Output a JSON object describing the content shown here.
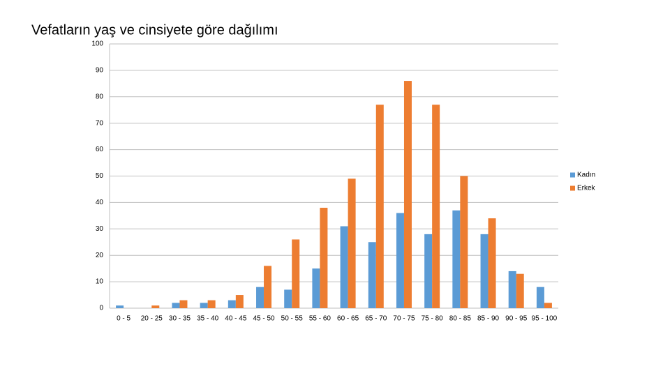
{
  "chart_data": {
    "type": "bar",
    "title": "Vefatların yaş ve cinsiyete göre dağılımı",
    "categories": [
      "0 - 5",
      "20 - 25",
      "30 - 35",
      "35 - 40",
      "40 - 45",
      "45 - 50",
      "50 - 55",
      "55 - 60",
      "60 - 65",
      "65 - 70",
      "70 - 75",
      "75 - 80",
      "80 - 85",
      "85 - 90",
      "90 - 95",
      "95 - 100"
    ],
    "series": [
      {
        "name": "Kadın",
        "color": "#5b9bd5",
        "values": [
          1,
          0,
          2,
          2,
          3,
          8,
          7,
          15,
          31,
          25,
          36,
          28,
          37,
          28,
          14,
          8
        ]
      },
      {
        "name": "Erkek",
        "color": "#ed7d31",
        "values": [
          0,
          1,
          3,
          3,
          5,
          16,
          26,
          38,
          49,
          77,
          86,
          77,
          50,
          34,
          13,
          2
        ]
      }
    ],
    "ylim": [
      0,
      100
    ],
    "yticks": [
      0,
      10,
      20,
      30,
      40,
      50,
      60,
      70,
      80,
      90,
      100
    ],
    "grid": true,
    "legend": "right"
  }
}
